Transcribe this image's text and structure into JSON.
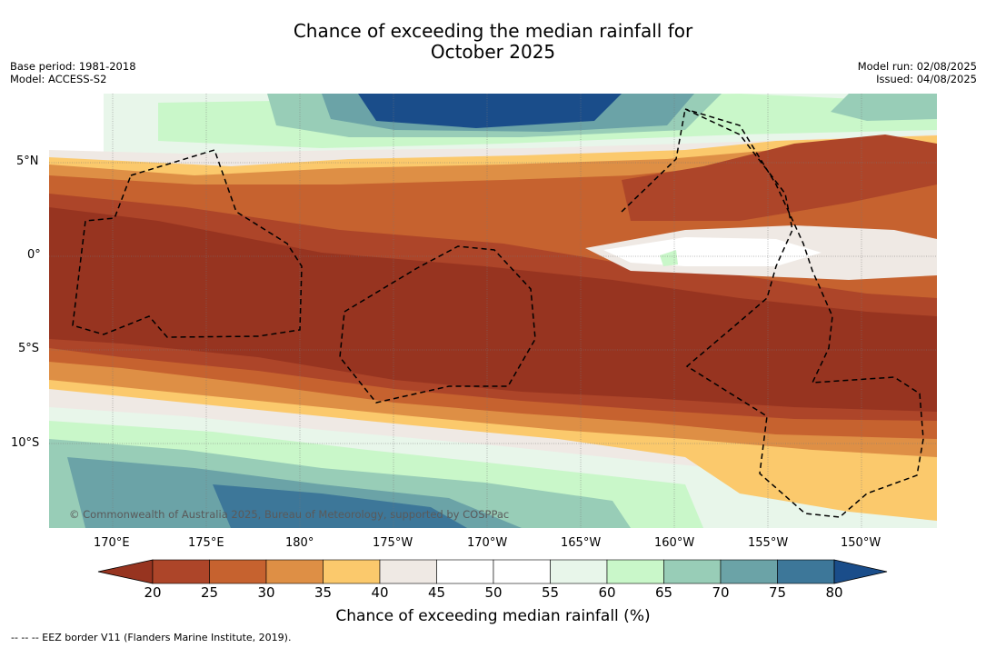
{
  "title": {
    "line1": "Chance of exceeding the median rainfall for",
    "line2": "October 2025"
  },
  "meta_left": {
    "base_period": "Base period: 1981-2018",
    "model": "Model: ACCESS-S2"
  },
  "meta_right": {
    "model_run": "Model run: 02/08/2025",
    "issued": "Issued: 04/08/2025"
  },
  "map": {
    "lat_labels": [
      "5°N",
      "0°",
      "5°S",
      "10°S"
    ],
    "lon_labels": [
      "170°E",
      "175°E",
      "180°",
      "175°W",
      "170°W",
      "165°W",
      "160°W",
      "155°W",
      "150°W"
    ],
    "copyright": "© Commonwealth of Australia 2025, Bureau of Meteorology, supported by COSPPac",
    "line_style": "dashed",
    "line_color": "#000000"
  },
  "colorbar": {
    "ticks": [
      "20",
      "25",
      "30",
      "35",
      "40",
      "45",
      "50",
      "55",
      "60",
      "65",
      "70",
      "75",
      "80"
    ],
    "colors": [
      "#973420",
      "#ad4529",
      "#c6622f",
      "#de8f45",
      "#fbc96c",
      "#efe9e4",
      "#ffffff",
      "#ffffff",
      "#e8f6ea",
      "#c9f7c9",
      "#98cdb7",
      "#6ba3a7",
      "#3d7799",
      "#1a4d8a"
    ],
    "title": "Chance of exceeding median rainfall (%)"
  },
  "footnote": "--  --  -- EEZ border V11 (Flanders Marine Institute, 2019)."
}
